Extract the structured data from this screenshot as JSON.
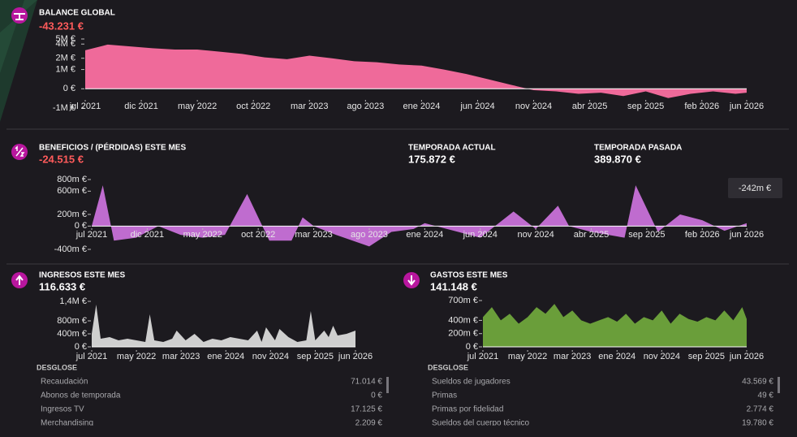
{
  "panels": {
    "balance": {
      "title": "BALANCE GLOBAL",
      "value": "-43.231 €"
    },
    "profit": {
      "title": "BENEFICIOS / (PÉRDIDAS) ESTE MES",
      "value": "-24.515 €",
      "current": {
        "label": "TEMPORADA ACTUAL",
        "value": "175.872 €"
      },
      "previous": {
        "label": "TEMPORADA PASADA",
        "value": "389.870 €"
      },
      "tooltip": "-242m €"
    },
    "income": {
      "title": "INGRESOS ESTE MES",
      "value": "116.633 €",
      "breakdown": {
        "title": "DESGLOSE",
        "rows": [
          [
            "Recaudación",
            "71.014 €"
          ],
          [
            "Abonos de temporada",
            "0 €"
          ],
          [
            "Ingresos TV",
            "17.125 €"
          ],
          [
            "Merchandising",
            "2.209 €"
          ]
        ]
      }
    },
    "expenses": {
      "title": "GASTOS ESTE MES",
      "value": "141.148 €",
      "breakdown": {
        "title": "DESGLOSE",
        "rows": [
          [
            "Sueldos de jugadores",
            "43.569 €"
          ],
          [
            "Primas",
            "49 €"
          ],
          [
            "Primas por fidelidad",
            "2.774 €"
          ],
          [
            "Sueldos del cuerpo técnico",
            "19.780 €"
          ]
        ]
      }
    }
  },
  "chart_data": [
    {
      "type": "area",
      "color": "#ef6a9a",
      "scale": "symlog",
      "x": [
        0,
        2,
        4,
        6,
        8,
        10,
        12,
        14,
        16,
        18,
        20,
        22,
        24,
        26,
        28,
        30,
        32,
        34,
        36,
        38,
        40,
        42,
        44,
        46,
        48,
        50,
        52,
        54,
        56,
        58,
        59
      ],
      "values": [
        3000000,
        3900000,
        3600000,
        3300000,
        3100000,
        3100000,
        2800000,
        2500000,
        2100000,
        1900000,
        2300000,
        2000000,
        1700000,
        1600000,
        1400000,
        1300000,
        1000000,
        700000,
        400000,
        150000,
        -50000,
        -100000,
        -200000,
        -150000,
        -300000,
        -100000,
        -400000,
        -200000,
        -100000,
        -200000,
        -150000
      ],
      "xlim": [
        0,
        59
      ],
      "xticks": [
        {
          "value": 0,
          "label": "jul 2021"
        },
        {
          "value": 5,
          "label": "dic 2021"
        },
        {
          "value": 10,
          "label": "may 2022"
        },
        {
          "value": 15,
          "label": "oct 2022"
        },
        {
          "value": 20,
          "label": "mar 2023"
        },
        {
          "value": 25,
          "label": "ago 2023"
        },
        {
          "value": 30,
          "label": "ene 2024"
        },
        {
          "value": 35,
          "label": "jun 2024"
        },
        {
          "value": 40,
          "label": "nov 2024"
        },
        {
          "value": 45,
          "label": "abr 2025"
        },
        {
          "value": 50,
          "label": "sep 2025"
        },
        {
          "value": 55,
          "label": "feb 2026"
        },
        {
          "value": 59,
          "label": "jun 2026"
        }
      ],
      "ylim": [
        -1000000,
        5000000
      ],
      "yticks": [
        {
          "value": 5000000,
          "label": "5M €"
        },
        {
          "value": 4000000,
          "label": "4M €"
        },
        {
          "value": 2000000,
          "label": "2M €"
        },
        {
          "value": 1000000,
          "label": "1M €"
        },
        {
          "value": 0,
          "label": "0 €"
        },
        {
          "value": -1000000,
          "label": "-1M €"
        }
      ]
    },
    {
      "type": "area",
      "color": "#bf6ccf",
      "scale": "linear",
      "x": [
        0,
        1,
        2,
        4,
        6,
        8,
        10,
        12,
        14,
        16,
        18,
        19,
        20,
        22,
        25,
        27,
        29,
        30,
        32,
        35,
        38,
        40,
        42,
        43,
        45,
        48,
        49,
        51,
        53,
        55,
        57,
        59
      ],
      "values": [
        0,
        700000,
        -250000,
        -200000,
        0,
        -150000,
        -200000,
        -150000,
        550000,
        -250000,
        -250000,
        150000,
        0,
        -150000,
        -350000,
        -100000,
        -50000,
        50000,
        -50000,
        -200000,
        250000,
        -50000,
        350000,
        0,
        -100000,
        -200000,
        700000,
        -100000,
        200000,
        100000,
        -80000,
        50000
      ],
      "xlim": [
        0,
        59
      ],
      "xticks": [
        {
          "value": 0,
          "label": "jul 2021"
        },
        {
          "value": 5,
          "label": "dic 2021"
        },
        {
          "value": 10,
          "label": "may 2022"
        },
        {
          "value": 15,
          "label": "oct 2022"
        },
        {
          "value": 20,
          "label": "mar 2023"
        },
        {
          "value": 25,
          "label": "ago 2023"
        },
        {
          "value": 30,
          "label": "ene 2024"
        },
        {
          "value": 35,
          "label": "jun 2024"
        },
        {
          "value": 40,
          "label": "nov 2024"
        },
        {
          "value": 45,
          "label": "abr 2025"
        },
        {
          "value": 50,
          "label": "sep 2025"
        },
        {
          "value": 55,
          "label": "feb 2026"
        },
        {
          "value": 59,
          "label": "jun 2026"
        }
      ],
      "ylim": [
        -400000,
        800000
      ],
      "yticks": [
        {
          "value": 800000,
          "label": "800m €"
        },
        {
          "value": 600000,
          "label": "600m €"
        },
        {
          "value": 200000,
          "label": "200m €"
        },
        {
          "value": 0,
          "label": "0 €"
        },
        {
          "value": -400000,
          "label": "-400m €"
        }
      ]
    },
    {
      "type": "area",
      "color": "#cfcfcf",
      "scale": "linear",
      "x": [
        0,
        1,
        2,
        4,
        6,
        8,
        10,
        12,
        13,
        14,
        16,
        18,
        19,
        21,
        23,
        25,
        27,
        29,
        31,
        33,
        35,
        37,
        38,
        39,
        41,
        42,
        44,
        46,
        48,
        49,
        50,
        52,
        53,
        54,
        55,
        57,
        59
      ],
      "values": [
        400000,
        1300000,
        250000,
        300000,
        200000,
        250000,
        200000,
        150000,
        1000000,
        200000,
        150000,
        250000,
        500000,
        200000,
        400000,
        150000,
        250000,
        200000,
        300000,
        250000,
        200000,
        500000,
        150000,
        600000,
        200000,
        550000,
        300000,
        150000,
        200000,
        1100000,
        200000,
        500000,
        300000,
        650000,
        350000,
        400000,
        500000
      ],
      "xlim": [
        0,
        59
      ],
      "xticks": [
        {
          "value": 0,
          "label": "jul 2021"
        },
        {
          "value": 10,
          "label": "may 2022"
        },
        {
          "value": 20,
          "label": "mar 2023"
        },
        {
          "value": 30,
          "label": "ene 2024"
        },
        {
          "value": 40,
          "label": "nov 2024"
        },
        {
          "value": 50,
          "label": "sep 2025"
        },
        {
          "value": 59,
          "label": "jun 2026"
        }
      ],
      "ylim": [
        0,
        1400000
      ],
      "yticks": [
        {
          "value": 1400000,
          "label": "1,4M €"
        },
        {
          "value": 800000,
          "label": "800m €"
        },
        {
          "value": 400000,
          "label": "400m €"
        },
        {
          "value": 0,
          "label": "0 €"
        }
      ]
    },
    {
      "type": "area",
      "color": "#6a9e3a",
      "scale": "linear",
      "x": [
        0,
        2,
        4,
        6,
        8,
        10,
        12,
        14,
        16,
        18,
        20,
        22,
        24,
        26,
        28,
        30,
        32,
        34,
        36,
        38,
        40,
        42,
        44,
        46,
        48,
        50,
        52,
        54,
        56,
        58,
        59
      ],
      "values": [
        450000,
        600000,
        400000,
        500000,
        350000,
        450000,
        600000,
        500000,
        650000,
        450000,
        550000,
        400000,
        350000,
        400000,
        450000,
        380000,
        500000,
        350000,
        450000,
        400000,
        550000,
        350000,
        500000,
        420000,
        380000,
        450000,
        400000,
        550000,
        400000,
        600000,
        420000
      ],
      "xlim": [
        0,
        59
      ],
      "xticks": [
        {
          "value": 0,
          "label": "jul 2021"
        },
        {
          "value": 10,
          "label": "may 2022"
        },
        {
          "value": 20,
          "label": "mar 2023"
        },
        {
          "value": 30,
          "label": "ene 2024"
        },
        {
          "value": 40,
          "label": "nov 2024"
        },
        {
          "value": 50,
          "label": "sep 2025"
        },
        {
          "value": 59,
          "label": "jun 2026"
        }
      ],
      "ylim": [
        0,
        700000
      ],
      "yticks": [
        {
          "value": 700000,
          "label": "700m €"
        },
        {
          "value": 400000,
          "label": "400m €"
        },
        {
          "value": 200000,
          "label": "200m €"
        },
        {
          "value": 0,
          "label": "0 €"
        }
      ]
    }
  ]
}
